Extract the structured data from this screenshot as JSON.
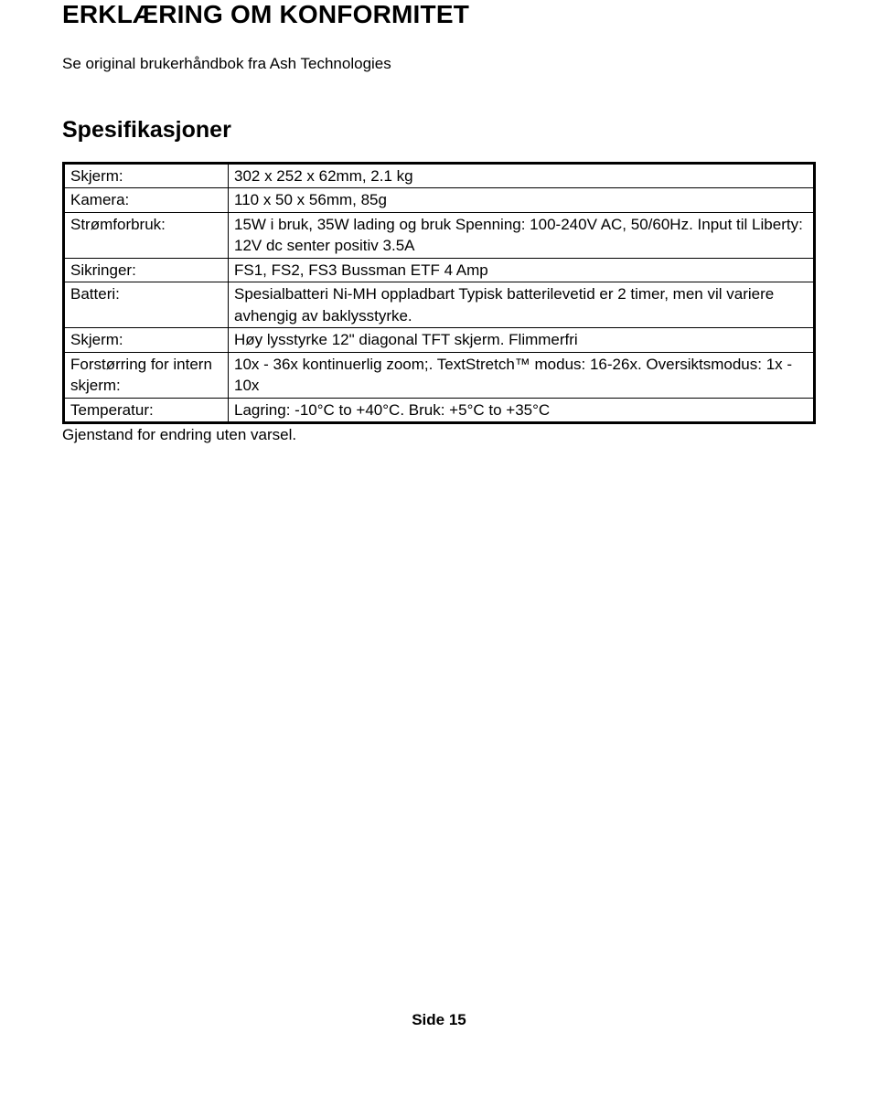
{
  "heading": "ERKLÆRING OM KONFORMITET",
  "subtext": "Se original brukerhåndbok fra Ash Technologies",
  "spec_heading": "Spesifikasjoner",
  "rows": [
    {
      "label": "Skjerm:",
      "value": "302 x 252 x 62mm, 2.1 kg"
    },
    {
      "label": "Kamera:",
      "value": "110 x 50 x 56mm, 85g"
    },
    {
      "label": "Strømforbruk:",
      "value": "15W i bruk, 35W lading og bruk\nSpenning: 100-240V AC, 50/60Hz.\nInput til Liberty: 12V dc senter positiv 3.5A"
    },
    {
      "label": "Sikringer:",
      "value": "FS1, FS2, FS3 Bussman ETF 4 Amp"
    },
    {
      "label": "Batteri:",
      "value": "Spesialbatteri Ni-MH oppladbart\nTypisk batterilevetid er 2 timer, men vil variere avhengig av baklysstyrke."
    },
    {
      "label": "Skjerm:",
      "value": "Høy lysstyrke 12\" diagonal TFT skjerm. Flimmerfri"
    },
    {
      "label": "Forstørring for intern skjerm:",
      "value": "10x - 36x kontinuerlig zoom;.\nTextStretch™ modus: 16-26x.\nOversiktsmodus: 1x - 10x"
    },
    {
      "label": "Temperatur:",
      "value": "Lagring: -10°C to +40°C.\nBruk: +5°C to +35°C"
    }
  ],
  "footnote": "Gjenstand for endring uten varsel.",
  "footer": "Side 15"
}
